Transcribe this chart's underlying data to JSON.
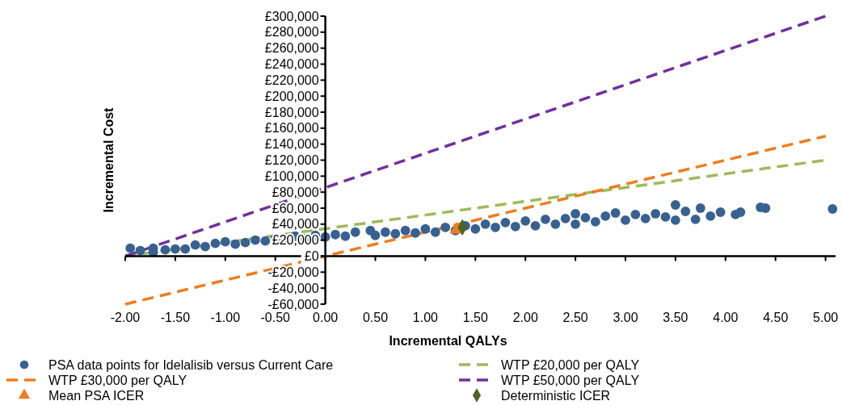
{
  "chart_data": {
    "type": "scatter",
    "xlabel": "Incremental QALYs",
    "ylabel": "Incremental Cost",
    "xlim": [
      -2,
      5.1
    ],
    "ylim": [
      -60000,
      300000
    ],
    "xticks": [
      {
        "value": -2,
        "label": "-2.00"
      },
      {
        "value": -1.5,
        "label": "-1.50"
      },
      {
        "value": -1,
        "label": "-1.00"
      },
      {
        "value": -0.5,
        "label": "-0.50"
      },
      {
        "value": 0,
        "label": "0.00"
      },
      {
        "value": 0.5,
        "label": "0.50"
      },
      {
        "value": 1,
        "label": "1.00"
      },
      {
        "value": 1.5,
        "label": "1.50"
      },
      {
        "value": 2,
        "label": "2.00"
      },
      {
        "value": 2.5,
        "label": "2.50"
      },
      {
        "value": 3,
        "label": "3.00"
      },
      {
        "value": 3.5,
        "label": "3.50"
      },
      {
        "value": 4,
        "label": "4.00"
      },
      {
        "value": 4.5,
        "label": "4.50"
      },
      {
        "value": 5,
        "label": "5.00"
      }
    ],
    "yticks": [
      {
        "value": -60000,
        "label": "-£60,000"
      },
      {
        "value": -40000,
        "label": "-£40,000"
      },
      {
        "value": -20000,
        "label": "-£20,000"
      },
      {
        "value": 0,
        "label": "£0"
      },
      {
        "value": 20000,
        "label": "£20,000"
      },
      {
        "value": 40000,
        "label": "£40,000"
      },
      {
        "value": 60000,
        "label": "£60,000"
      },
      {
        "value": 80000,
        "label": "£80,000"
      },
      {
        "value": 100000,
        "label": "£100,000"
      },
      {
        "value": 120000,
        "label": "£120,000"
      },
      {
        "value": 140000,
        "label": "£140,000"
      },
      {
        "value": 160000,
        "label": "£160,000"
      },
      {
        "value": 180000,
        "label": "£180,000"
      },
      {
        "value": 200000,
        "label": "£200,000"
      },
      {
        "value": 220000,
        "label": "£220,000"
      },
      {
        "value": 240000,
        "label": "£240,000"
      },
      {
        "value": 260000,
        "label": "£260,000"
      },
      {
        "value": 280000,
        "label": "£280,000"
      },
      {
        "value": 300000,
        "label": "£300,000"
      }
    ],
    "legend": "bottom",
    "series": [
      {
        "name": "PSA data points for Idelalisib versus Current Care",
        "marker": "circle",
        "color": "#386192",
        "x": [
          -1.95,
          -1.85,
          -1.72,
          -1.72,
          -1.6,
          -1.5,
          -1.4,
          -1.3,
          -1.2,
          -1.1,
          -1.0,
          -0.9,
          -0.8,
          -0.7,
          -0.6,
          -0.5,
          -0.4,
          -0.3,
          -0.2,
          -0.1,
          0,
          0.1,
          0.2,
          0.3,
          0.45,
          0.5,
          0.6,
          0.7,
          0.8,
          0.9,
          1.0,
          1.1,
          1.2,
          1.3,
          1.4,
          1.5,
          1.6,
          1.7,
          1.8,
          1.9,
          2.0,
          2.1,
          2.2,
          2.3,
          2.4,
          2.5,
          2.5,
          2.6,
          2.7,
          2.8,
          2.9,
          3.0,
          3.1,
          3.2,
          3.3,
          3.4,
          3.5,
          3.5,
          3.6,
          3.7,
          3.75,
          3.85,
          3.95,
          4.1,
          4.15,
          4.35,
          4.4,
          5.07
        ],
        "values": [
          10000,
          7000,
          10000,
          5000,
          8000,
          9000,
          9000,
          14000,
          12000,
          16000,
          18000,
          15000,
          17000,
          20000,
          19000,
          22000,
          20000,
          25000,
          22000,
          26000,
          24000,
          27000,
          25000,
          30000,
          32000,
          26000,
          30000,
          28000,
          32000,
          29000,
          34000,
          30000,
          36000,
          32000,
          38000,
          34000,
          40000,
          36000,
          42000,
          37000,
          44000,
          38000,
          46000,
          40000,
          47000,
          53000,
          40000,
          48000,
          43000,
          50000,
          54000,
          45000,
          52000,
          47000,
          53000,
          49000,
          64000,
          45000,
          56000,
          46000,
          60000,
          50000,
          55000,
          52000,
          55000,
          61000,
          60000,
          59000
        ]
      },
      {
        "name": "WTP £20,000 per QALY",
        "type": "line",
        "line_style": "dashed",
        "color": "#9bbb59",
        "x": [
          -2,
          5
        ],
        "values": [
          0,
          120000
        ]
      },
      {
        "name": "WTP £30,000 per QALY",
        "type": "line",
        "line_style": "dashed",
        "color": "#f07c1e",
        "x": [
          -2,
          5
        ],
        "values": [
          -60000,
          150000
        ]
      },
      {
        "name": "WTP £50,000 per QALY",
        "type": "line",
        "line_style": "dashed",
        "color": "#7030a0",
        "x": [
          -2,
          5
        ],
        "values": [
          0,
          300000
        ]
      },
      {
        "name": "Mean PSA ICER",
        "marker": "triangle",
        "color": "#f07c1e",
        "x": [
          1.31
        ],
        "values": [
          33000
        ]
      },
      {
        "name": "Deterministic ICER",
        "marker": "diamond",
        "color": "#4f6228",
        "x": [
          1.37
        ],
        "values": [
          36000
        ]
      }
    ]
  }
}
